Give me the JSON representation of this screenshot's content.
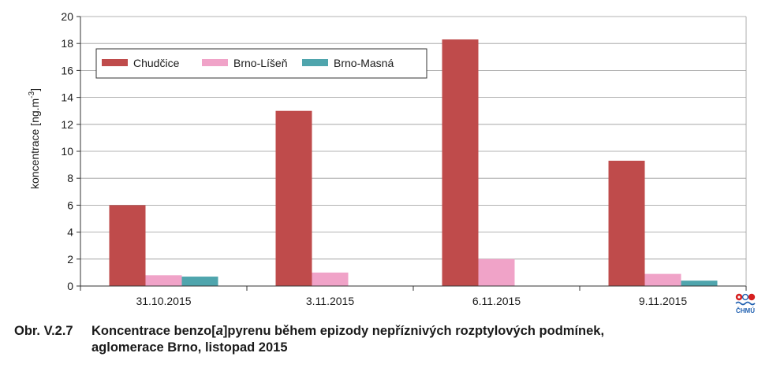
{
  "chart_data": {
    "type": "bar",
    "categories": [
      "31.10.2015",
      "3.11.2015",
      "6.11.2015",
      "9.11.2015"
    ],
    "series": [
      {
        "name": "Chudčice",
        "values": [
          6.0,
          13.0,
          18.3,
          9.3
        ],
        "color": "#bf4b4b"
      },
      {
        "name": "Brno-Líšeň",
        "values": [
          0.8,
          1.0,
          2.0,
          0.9
        ],
        "color": "#f0a3c8"
      },
      {
        "name": "Brno-Masná",
        "values": [
          0.7,
          null,
          null,
          0.4
        ],
        "color": "#4fa5ad"
      }
    ],
    "ylabel": "koncentrace [ng.m-3]",
    "ylim": [
      0,
      20
    ],
    "yticks": [
      0,
      2,
      4,
      6,
      8,
      10,
      12,
      14,
      16,
      18,
      20
    ],
    "grid": true,
    "legend_position": "top-left"
  },
  "caption": {
    "number": "Obr. V.2.7",
    "line1": "Koncentrace benzo[a]pyrenu během epizody nepříznivých rozptylových podmínek,",
    "line2": "aglomerace Brno, listopad 2015"
  },
  "logo": {
    "text": "ČHMÚ",
    "icon": "chmu-logo-icon"
  }
}
